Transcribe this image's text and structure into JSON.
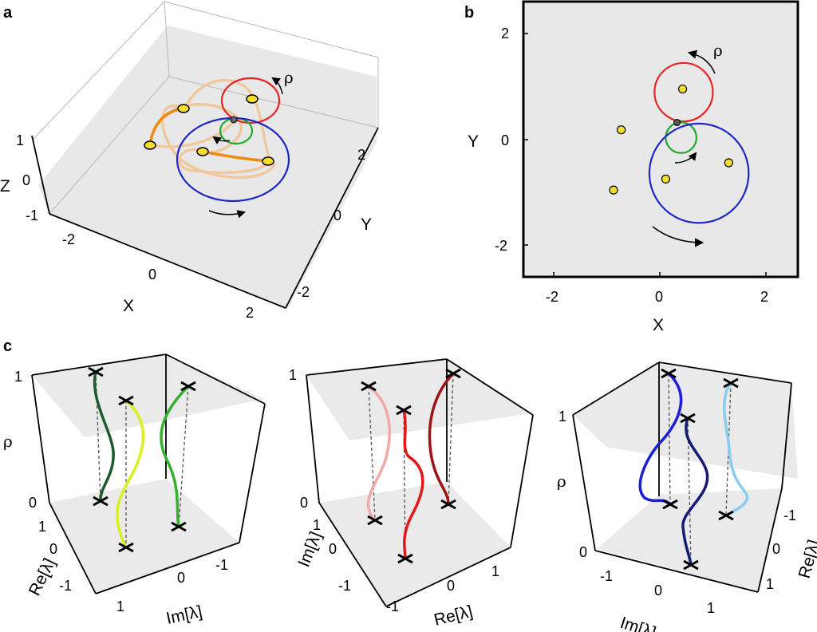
{
  "colors": {
    "red": "#e82424",
    "green": "#1faa2a",
    "blue": "#1c26c8",
    "yellow": "#f7de2a",
    "orange": "#f08a10",
    "tan": "#f0c8a0",
    "gray": "#e6e6e6",
    "c1_dark": "#1e5a30",
    "c1_lime": "#d8f020",
    "c1_green": "#34b02e",
    "c2_pink": "#f4a8a8",
    "c2_red": "#e21818",
    "c2_dark": "#9c1414",
    "c3_blue": "#1a20d6",
    "c3_navy": "#141c74",
    "c3_light": "#88ccf0"
  },
  "panel_a": {
    "label": "a",
    "rho": "ρ",
    "z_axis": {
      "label": "Z",
      "ticks": [
        "1",
        "0",
        "-1"
      ]
    },
    "x_axis": {
      "label": "X",
      "ticks": [
        "-2",
        "0",
        "2"
      ]
    },
    "y_axis": {
      "label": "Y",
      "ticks": [
        "2",
        "0",
        "-2"
      ]
    }
  },
  "panel_b": {
    "label": "b",
    "rho": "ρ",
    "xlabel": "X",
    "ylabel": "Y",
    "xticks": [
      "-2",
      "0",
      "2"
    ],
    "yticks": [
      "2",
      "0",
      "-2"
    ],
    "xlim": [
      -2.7,
      2.6
    ],
    "ylim": [
      -2.6,
      2.6
    ],
    "circles": [
      {
        "name": "red",
        "color": "red",
        "cx": 0.4,
        "cy": 0.9,
        "r": 0.57
      },
      {
        "name": "green",
        "color": "green",
        "cx": 0.35,
        "cy": 0.03,
        "r": 0.3
      },
      {
        "name": "blue",
        "color": "blue",
        "cx": 0.7,
        "cy": -0.65,
        "r": 0.97
      }
    ],
    "points": [
      {
        "x": 0.38,
        "y": 0.96
      },
      {
        "x": -0.82,
        "y": 0.18
      },
      {
        "x": 1.28,
        "y": -0.45
      },
      {
        "x": 0.05,
        "y": -0.76
      },
      {
        "x": -0.97,
        "y": -0.97
      }
    ],
    "center": {
      "x": 0.27,
      "y": 0.32
    }
  },
  "panel_c": {
    "label": "c",
    "sub1": {
      "rho": "ρ",
      "rho_ticks": [
        "1",
        "0"
      ],
      "left_label": "Re[λ]",
      "left_ticks": [
        "1",
        "0",
        "-1"
      ],
      "bottom_label": "Im[λ]",
      "bottom_ticks": [
        "1",
        "0",
        "-1"
      ]
    },
    "sub2": {
      "rho_ticks": [
        "1",
        "0"
      ],
      "left_label": "Im[λ]",
      "left_ticks": [
        "1",
        "0",
        "-1"
      ],
      "bottom_label": "Re[λ]",
      "bottom_ticks": [
        "-1",
        "0",
        "1"
      ]
    },
    "sub3": {
      "rho": "ρ",
      "rho_ticks": [
        "1",
        "0"
      ],
      "right_label": "Re[λ]",
      "right_ticks": [
        "-1",
        "0",
        "1"
      ],
      "bottom_label": "Im[λ]",
      "bottom_ticks": [
        "-1",
        "0",
        "1"
      ]
    }
  }
}
